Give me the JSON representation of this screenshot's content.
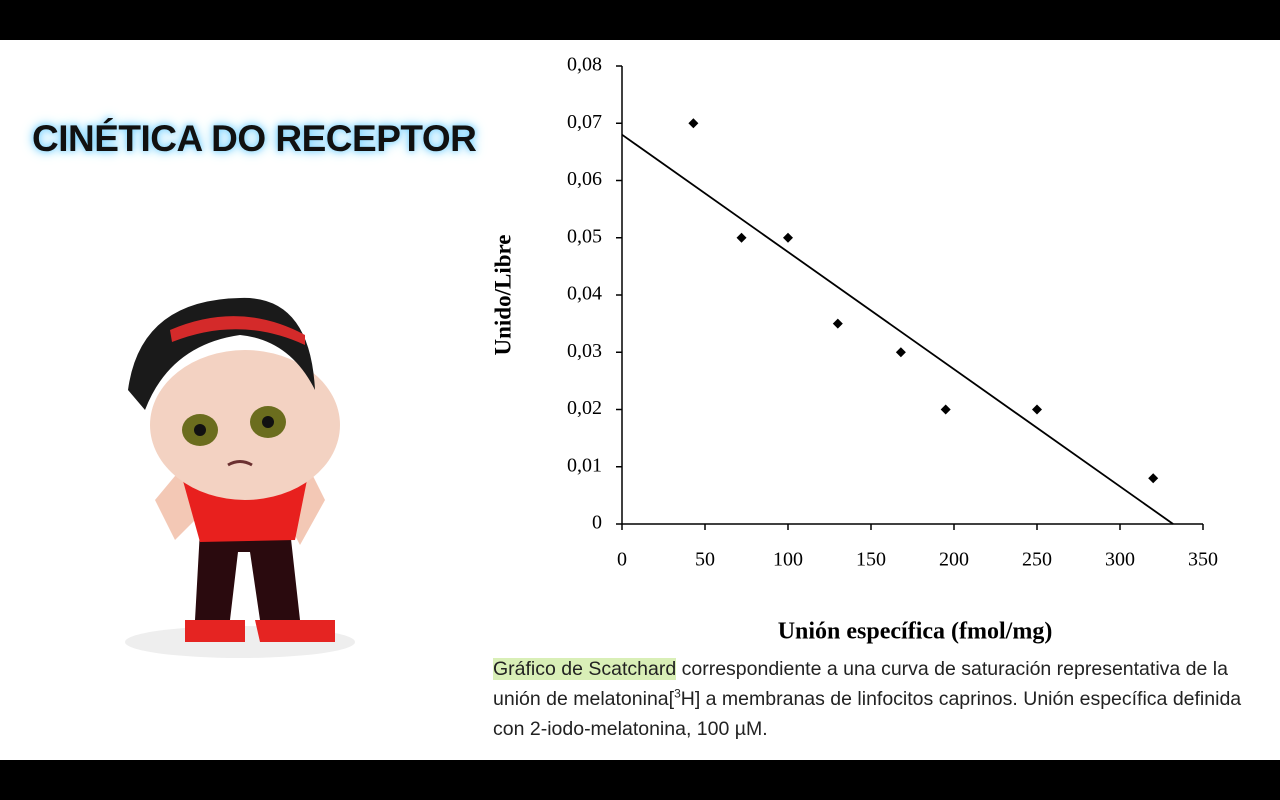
{
  "title": "CINÉTICA DO RECEPTOR",
  "caption": {
    "highlight": "Gráfico de Scatchard",
    "text_1": " correspondiente a una curva de saturación representativa de la unión de melatonina[",
    "superscript": "3",
    "text_2": "H] a membranas de linfocitos caprinos. Unión específica definida con 2-iodo-melatonina, 100 µM."
  },
  "chart_data": {
    "type": "scatter",
    "x_label": "Unión específica (fmol/mg)",
    "y_label": "Unido/Libre",
    "x": [
      43,
      72,
      100,
      130,
      168,
      195,
      250,
      320
    ],
    "y": [
      0.07,
      0.05,
      0.05,
      0.035,
      0.03,
      0.02,
      0.02,
      0.008
    ],
    "color": "#000000",
    "trend_line": {
      "x": [
        0,
        332
      ],
      "y": [
        0.068,
        0
      ]
    },
    "xlim": [
      0,
      350
    ],
    "ylim": [
      0,
      0.08
    ],
    "xticks": [
      0,
      50,
      100,
      150,
      200,
      250,
      300,
      350
    ],
    "yticks": [
      0,
      {
        "value": 0.01,
        "label": "0,01"
      },
      {
        "value": 0.02,
        "label": "0,02"
      },
      {
        "value": 0.03,
        "label": "0,03"
      },
      {
        "value": 0.04,
        "label": "0,04"
      },
      {
        "value": 0.05,
        "label": "0,05"
      },
      {
        "value": 0.06,
        "label": "0,06"
      },
      {
        "value": 0.07,
        "label": "0,07"
      },
      {
        "value": 0.08,
        "label": "0,08"
      }
    ]
  }
}
